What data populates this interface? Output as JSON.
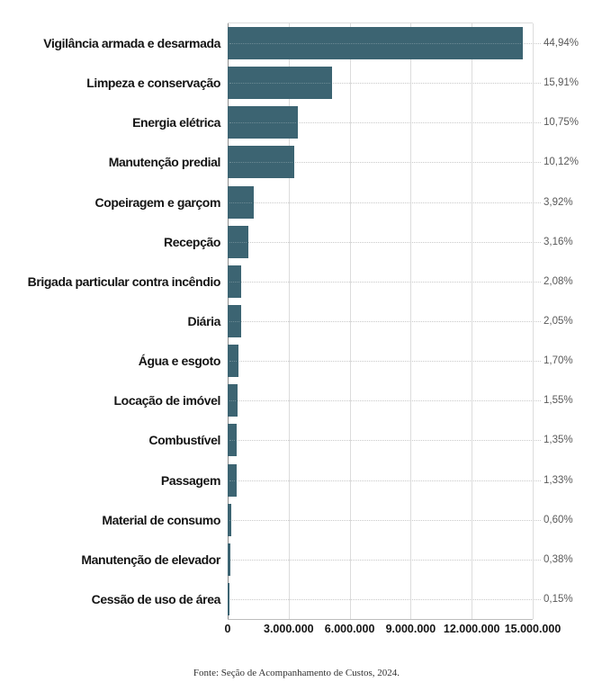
{
  "chart_data": {
    "type": "bar",
    "orientation": "horizontal",
    "title": "",
    "xlabel": "",
    "ylabel": "",
    "grid": "vertical",
    "legend": "none",
    "bar_color": "#3c6472",
    "leader_line_color": "#c9c9c9",
    "percent_label_color": "#595959",
    "xlim": [
      0,
      15000000
    ],
    "x_ticks": [
      0,
      3000000,
      6000000,
      9000000,
      12000000,
      15000000
    ],
    "x_tick_labels": [
      "0",
      "3.000.000",
      "6.000.000",
      "9.000.000",
      "12.000.000",
      "15.000.000"
    ],
    "categories": [
      "Vigilância armada e desarmada",
      "Limpeza e conservação",
      "Energia elétrica",
      "Manutenção predial",
      "Copeiragem e garçom",
      "Recepção",
      "Brigada particular contra incêndio",
      "Diária",
      "Água e esgoto",
      "Locação de imóvel",
      "Combustível",
      "Passagem",
      "Material de consumo",
      "Manutenção de elevador",
      "Cessão de uso de área"
    ],
    "values": [
      14510000,
      5137000,
      3471000,
      3268000,
      1266000,
      1020000,
      672000,
      662000,
      549000,
      500000,
      436000,
      429000,
      194000,
      123000,
      48000
    ],
    "percent_labels": [
      "44,94%",
      "15,91%",
      "10,75%",
      "10,12%",
      "3,92%",
      "3,16%",
      "2,08%",
      "2,05%",
      "1,70%",
      "1,55%",
      "1,35%",
      "1,33%",
      "0,60%",
      "0,38%",
      "0,15%"
    ]
  },
  "source": "Fonte: Seção de Acompanhamento de Custos, 2024."
}
